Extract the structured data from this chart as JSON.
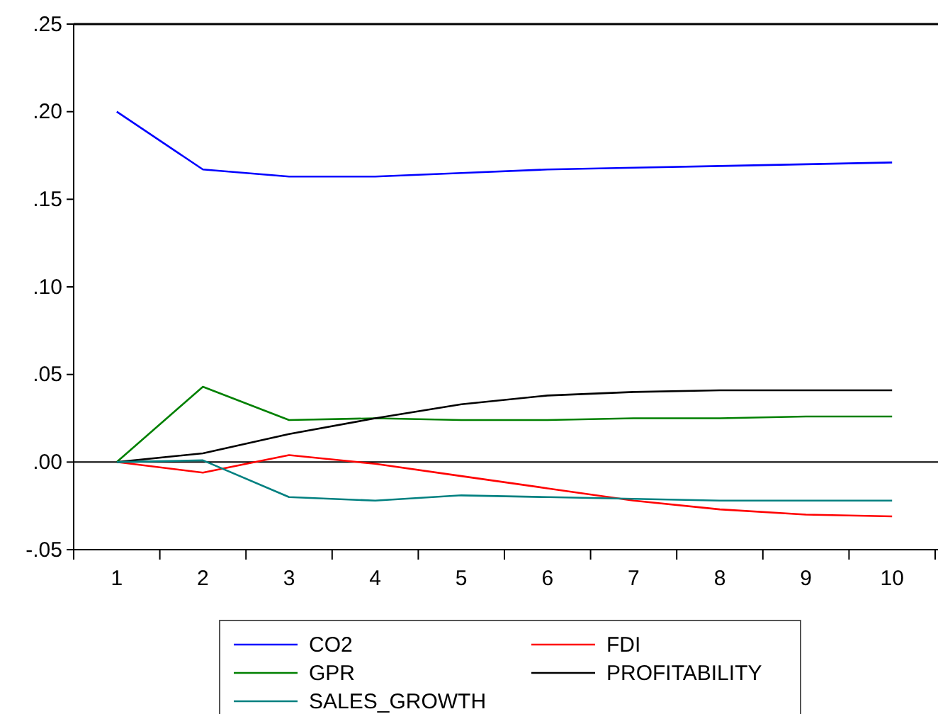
{
  "chart_data": {
    "type": "line",
    "categories": [
      "1",
      "2",
      "3",
      "4",
      "5",
      "6",
      "7",
      "8",
      "9",
      "10"
    ],
    "series": [
      {
        "name": "CO2",
        "color": "#0000ff",
        "values": [
          0.2,
          0.167,
          0.163,
          0.163,
          0.165,
          0.167,
          0.168,
          0.169,
          0.17,
          0.171
        ]
      },
      {
        "name": "FDI",
        "color": "#ff0000",
        "values": [
          0,
          -0.006,
          0.004,
          -0.001,
          -0.008,
          -0.015,
          -0.022,
          -0.027,
          -0.03,
          -0.031
        ]
      },
      {
        "name": "GPR",
        "color": "#008000",
        "values": [
          0,
          0.043,
          0.024,
          0.025,
          0.024,
          0.024,
          0.025,
          0.025,
          0.026,
          0.026
        ]
      },
      {
        "name": "PROFITABILITY",
        "color": "#000000",
        "values": [
          0,
          0.005,
          0.016,
          0.025,
          0.033,
          0.038,
          0.04,
          0.041,
          0.041,
          0.041
        ]
      },
      {
        "name": "SALES_GROWTH",
        "color": "#008080",
        "values": [
          0,
          0.001,
          -0.02,
          -0.022,
          -0.019,
          -0.02,
          -0.021,
          -0.022,
          -0.022,
          -0.022
        ]
      }
    ],
    "ylim": [
      -0.05,
      0.25
    ],
    "yticks": [
      {
        "value": -0.05,
        "label": "-.05"
      },
      {
        "value": 0,
        "label": ".00"
      },
      {
        "value": 0.05,
        "label": ".05"
      },
      {
        "value": 0.1,
        "label": ".10"
      },
      {
        "value": 0.15,
        "label": ".15"
      },
      {
        "value": 0.2,
        "label": ".20"
      },
      {
        "value": 0.25,
        "label": ".25"
      }
    ],
    "ref_lines": [
      {
        "axis": "y",
        "value": 0,
        "color": "#000000"
      }
    ],
    "legend": "bottom",
    "grid": false,
    "marker": "none",
    "line_style": "solid"
  }
}
